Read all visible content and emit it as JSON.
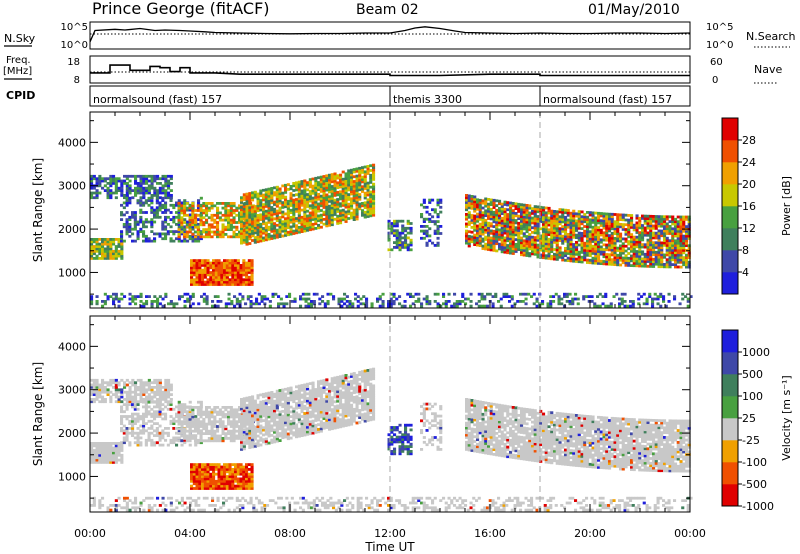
{
  "header": {
    "station": "Prince George (fitACF)",
    "beam": "Beam 02",
    "date": "01/May/2010"
  },
  "side_labels": {
    "nsky": "N.Sky",
    "nsearch": "N.Search",
    "freq_line1": "Freq.",
    "freq_line2": "[MHz]",
    "nave": "Nave",
    "cpid": "CPID"
  },
  "cpid_segments": [
    {
      "label": "normalsound (fast) 157",
      "start": 0,
      "end": 12.0
    },
    {
      "label": "themis 3300",
      "start": 12.0,
      "end": 18.0
    },
    {
      "label": "normalsound (fast) 157",
      "start": 18.0,
      "end": 24.0
    }
  ],
  "colors": {
    "power": [
      "#1f1fdc",
      "#3f48a8",
      "#3f7f5c",
      "#48a040",
      "#c8c800",
      "#f0a000",
      "#f05000",
      "#e00000"
    ],
    "velocity": [
      "#1f1fdc",
      "#3f48a8",
      "#3f7f5c",
      "#48a040",
      "#c8c8c8",
      "#f0a000",
      "#f05000",
      "#e00000"
    ]
  },
  "chart_data": [
    {
      "type": "line",
      "name": "noise-panel",
      "ylabel_left": "N.Sky",
      "ylabel_right": "N.Search",
      "left_ticks": [
        "10^5",
        "10^0"
      ],
      "right_ticks": [
        "10^5",
        "10^0"
      ],
      "xlim": [
        0,
        24
      ],
      "series": [
        {
          "x": [
            0,
            0.2,
            1.0,
            1.4,
            2.0,
            2.6,
            3.0,
            3.6,
            4.0,
            4.6,
            5.0,
            6.0,
            7.0,
            8.0,
            9.0,
            10.0,
            11.0,
            12.0,
            12.6,
            13.0,
            13.4,
            14.0,
            14.6,
            15.0,
            16.0,
            17.0,
            18.0,
            19.0,
            20.0,
            21.0,
            22.0,
            23.0,
            24.0
          ],
          "y": [
            0.25,
            0.7,
            0.75,
            0.72,
            0.78,
            0.7,
            0.72,
            0.7,
            0.68,
            0.65,
            0.62,
            0.6,
            0.58,
            0.57,
            0.58,
            0.58,
            0.6,
            0.6,
            0.7,
            0.8,
            0.85,
            0.78,
            0.68,
            0.62,
            0.6,
            0.58,
            0.6,
            0.58,
            0.58,
            0.6,
            0.6,
            0.58,
            0.6
          ]
        }
      ]
    },
    {
      "type": "line",
      "name": "frequency-panel",
      "ylabel_left": "Freq. [MHz]",
      "ylabel_right": "Nave",
      "left_ticks": [
        "18",
        "8"
      ],
      "right_ticks": [
        "60",
        "0"
      ],
      "xlim": [
        0,
        24
      ],
      "series": [
        {
          "name": "Freq.",
          "x": [
            0,
            0.8,
            0.8,
            1.6,
            1.6,
            2.4,
            2.4,
            2.8,
            2.8,
            3.2,
            3.2,
            3.6,
            3.6,
            4.0,
            4.0,
            5.0,
            6.0,
            8.0,
            10.0,
            12.0,
            12.0,
            14.0,
            16.0,
            18.0,
            18.0,
            20.0,
            22.0,
            24.0
          ],
          "y": [
            11.5,
            11.5,
            14.5,
            14.5,
            12.5,
            12.5,
            14.0,
            14.0,
            13.5,
            13.5,
            12.0,
            12.0,
            13.5,
            13.5,
            11.5,
            11.5,
            11.0,
            11.0,
            11.0,
            11.0,
            10.5,
            10.5,
            11.0,
            11.0,
            10.5,
            10.5,
            10.5,
            10.5
          ]
        },
        {
          "name": "Nave",
          "style": "dotted",
          "x": [
            0,
            24
          ],
          "y": [
            23,
            23
          ]
        }
      ]
    },
    {
      "type": "heatmap",
      "name": "power-panel",
      "ylabel": "Slant Range [km]",
      "xlabel": "Time UT",
      "yticks": [
        1000,
        2000,
        3000,
        4000
      ],
      "ylim": [
        180,
        4700
      ],
      "xticks": [
        "00:00",
        "04:00",
        "08:00",
        "12:00",
        "16:00",
        "20:00",
        "00:00"
      ],
      "xlim": [
        0,
        24
      ],
      "colorbar_label": "Power [dB]",
      "colorbar_ticks": [
        4,
        8,
        12,
        16,
        20,
        24,
        28
      ],
      "colorbar_range": [
        0,
        32
      ]
    },
    {
      "type": "heatmap",
      "name": "velocity-panel",
      "ylabel": "Slant Range [km]",
      "xlabel": "Time UT",
      "yticks": [
        1000,
        2000,
        3000,
        4000
      ],
      "ylim": [
        180,
        4700
      ],
      "xticks": [
        "00:00",
        "04:00",
        "08:00",
        "12:00",
        "16:00",
        "20:00",
        "00:00"
      ],
      "xlim": [
        0,
        24
      ],
      "colorbar_label": "Velocity [m s⁻¹]",
      "colorbar_ticks": [
        1000,
        500,
        100,
        25,
        -25,
        -100,
        -500,
        -1000
      ]
    }
  ]
}
